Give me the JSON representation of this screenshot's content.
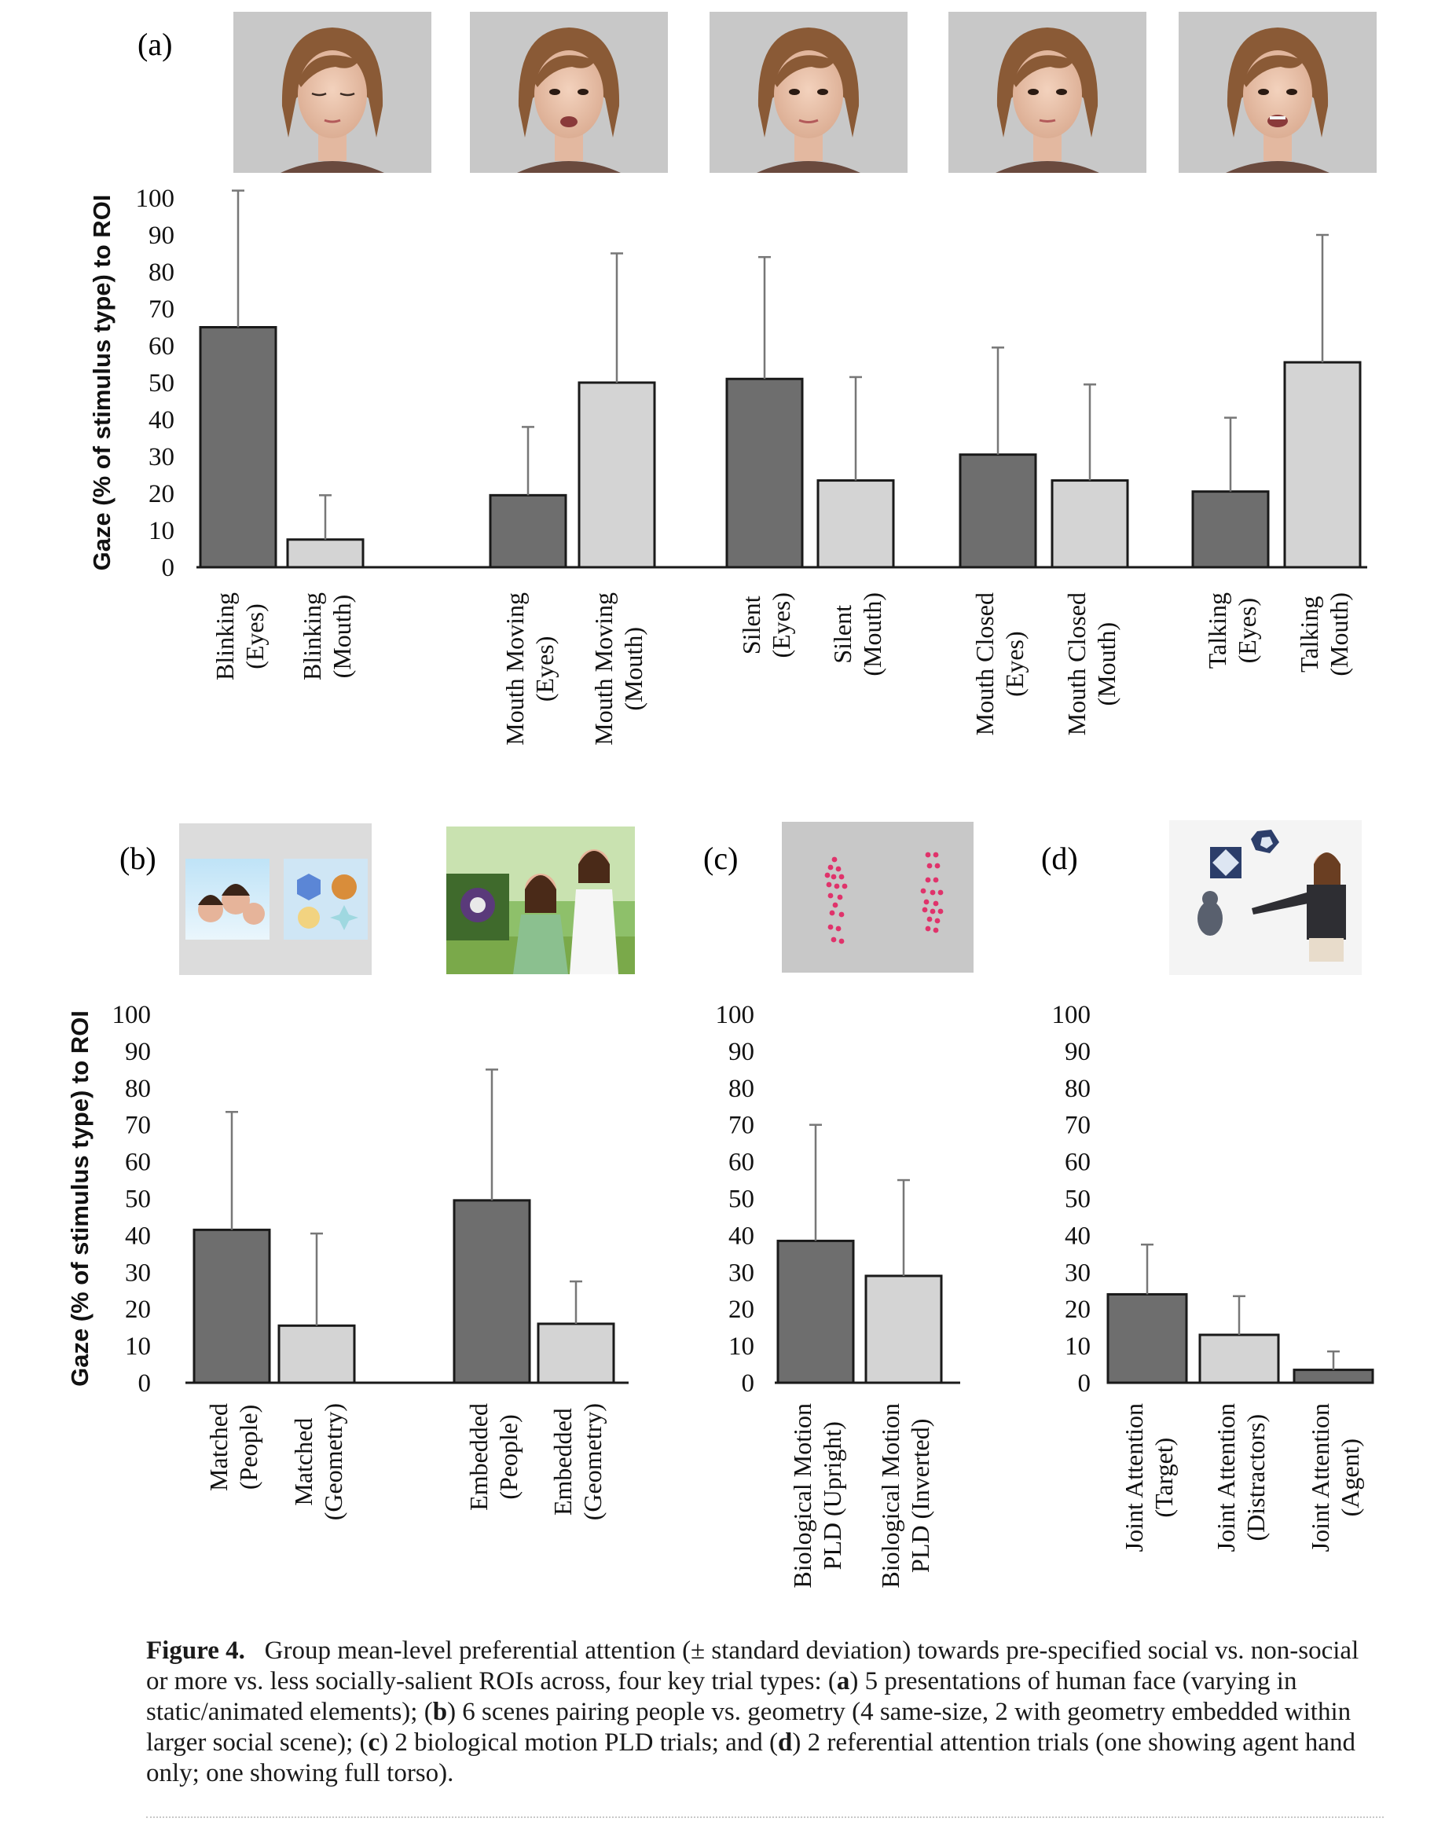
{
  "figure": {
    "panel_a_label": "(a)",
    "panel_b_label": "(b)",
    "panel_c_label": "(c)",
    "panel_d_label": "(d)",
    "caption_bold": "Figure 4.",
    "caption_text_1": "Group mean-level preferential attention (± standard deviation) towards pre-specified social vs. non-social or more vs. less socially-salient ROIs across, four key trial types: (",
    "caption_a": "a",
    "caption_text_2": ") 5 presentations of human face (varying in static/animated elements); (",
    "caption_b": "b",
    "caption_text_3": ") 6 scenes pairing people vs. geometry (4 same-size, 2 with geometry embedded within larger social scene); (",
    "caption_c": "c",
    "caption_text_4": ") 2 biological motion PLD trials; and (",
    "caption_d": "d",
    "caption_text_5": ") 2 referential attention trials (one showing agent hand only; one showing full torso)."
  },
  "colors": {
    "dark_bar": "#6e6e6e",
    "light_bar": "#d4d4d4",
    "bar_stroke": "#1a1a1a",
    "error_bar": "#777777",
    "photo_bg": "#c9c9c9",
    "dot_color": "#e0336b"
  },
  "chart_data": [
    {
      "panel": "a",
      "type": "bar",
      "ylabel": "Gaze (% of stimulus type) to ROI",
      "ylim": [
        0,
        100
      ],
      "yticks": [
        "0",
        "10",
        "20",
        "30",
        "40",
        "50",
        "60",
        "70",
        "80",
        "90",
        "100"
      ],
      "categories": [
        [
          "Blinking",
          "(Eyes)"
        ],
        [
          "Blinking",
          "(Mouth)"
        ],
        [
          "Mouth Moving",
          "(Eyes)"
        ],
        [
          "Mouth Moving",
          "(Mouth)"
        ],
        [
          "Silent",
          "(Eyes)"
        ],
        [
          "Silent",
          "(Mouth)"
        ],
        [
          "Mouth Closed",
          "(Eyes)"
        ],
        [
          "Mouth Closed",
          "(Mouth)"
        ],
        [
          "Talking",
          "(Eyes)"
        ],
        [
          "Talking",
          "(Mouth)"
        ]
      ],
      "values": [
        65,
        7.5,
        19.5,
        50,
        51,
        23.5,
        30.5,
        23.5,
        20.5,
        55.5
      ],
      "errors": [
        37,
        12,
        18.5,
        35,
        33,
        28,
        29,
        26,
        20,
        34.5
      ],
      "shade": [
        "dark",
        "light",
        "dark",
        "light",
        "dark",
        "light",
        "dark",
        "light",
        "dark",
        "light"
      ]
    },
    {
      "panel": "b",
      "type": "bar",
      "ylabel": "Gaze (% of stimulus type) to ROI",
      "ylim": [
        0,
        100
      ],
      "yticks": [
        "0",
        "10",
        "20",
        "30",
        "40",
        "50",
        "60",
        "70",
        "80",
        "90",
        "100"
      ],
      "categories": [
        [
          "Matched",
          "(People)"
        ],
        [
          "Matched",
          "(Geometry)"
        ],
        [
          "Embedded",
          "(People)"
        ],
        [
          "Embedded",
          "(Geometry)"
        ]
      ],
      "values": [
        41.5,
        15.5,
        49.5,
        16
      ],
      "errors": [
        32,
        25,
        35.5,
        11.5
      ],
      "shade": [
        "dark",
        "light",
        "dark",
        "light"
      ]
    },
    {
      "panel": "c",
      "type": "bar",
      "ylabel": "",
      "ylim": [
        0,
        100
      ],
      "yticks": [
        "0",
        "10",
        "20",
        "30",
        "40",
        "50",
        "60",
        "70",
        "80",
        "90",
        "100"
      ],
      "categories": [
        [
          "Biological Motion",
          "PLD (Upright)"
        ],
        [
          "Biological Motion",
          "PLD (Inverted)"
        ]
      ],
      "values": [
        38.5,
        29
      ],
      "errors": [
        31.5,
        26
      ],
      "shade": [
        "dark",
        "light"
      ]
    },
    {
      "panel": "d",
      "type": "bar",
      "ylabel": "",
      "ylim": [
        0,
        100
      ],
      "yticks": [
        "0",
        "10",
        "20",
        "30",
        "40",
        "50",
        "60",
        "70",
        "80",
        "90",
        "100"
      ],
      "categories": [
        [
          "Joint Attention",
          "(Target)"
        ],
        [
          "Joint Attention",
          "(Distractors)"
        ],
        [
          "Joint Attention",
          "(Agent)"
        ]
      ],
      "values": [
        24,
        13,
        3.5
      ],
      "errors": [
        13.5,
        10.5,
        5
      ],
      "shade": [
        "dark",
        "light",
        "dark"
      ]
    }
  ]
}
